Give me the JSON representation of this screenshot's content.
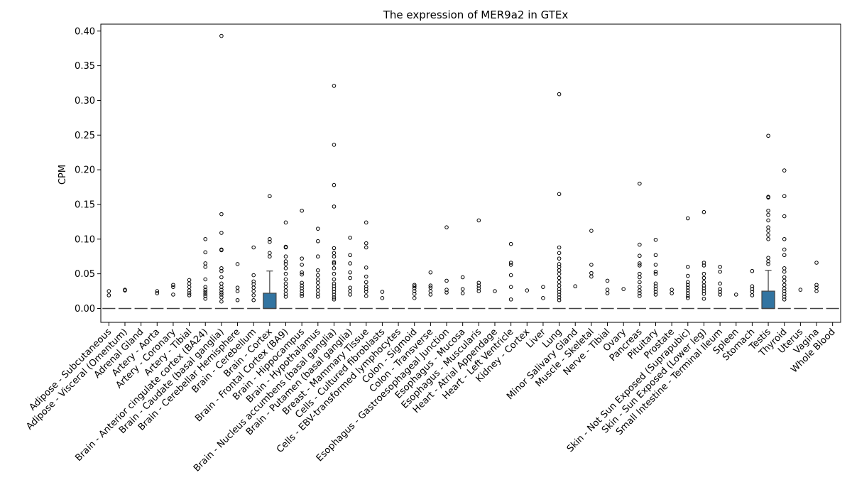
{
  "chart_data": {
    "type": "box",
    "title": "The expression of MER9a2 in GTEx",
    "xlabel": "",
    "ylabel": "CPM",
    "ylim": [
      -0.02,
      0.41
    ],
    "yticks": [
      "0.00",
      "0.05",
      "0.10",
      "0.15",
      "0.20",
      "0.25",
      "0.30",
      "0.35",
      "0.40"
    ],
    "ytick_values": [
      0,
      0.05,
      0.1,
      0.15,
      0.2,
      0.25,
      0.3,
      0.35,
      0.4
    ],
    "grid": false,
    "box_color": "#3274a1",
    "categories": [
      "Adipose - Subcutaneous",
      "Adipose - Visceral (Omentum)",
      "Adrenal Gland",
      "Artery - Aorta",
      "Artery - Coronary",
      "Artery - Tibial",
      "Brain - Anterior cingulate cortex (BA24)",
      "Brain - Caudate (basal ganglia)",
      "Brain - Cerebellar Hemisphere",
      "Brain - Cerebellum",
      "Brain - Cortex",
      "Brain - Frontal Cortex (BA9)",
      "Brain - Hippocampus",
      "Brain - Hypothalamus",
      "Brain - Nucleus accumbens (basal ganglia)",
      "Brain - Putamen (basal ganglia)",
      "Breast - Mammary Tissue",
      "Cells - Cultured fibroblasts",
      "Cells - EBV-transformed lymphocytes",
      "Colon - Sigmoid",
      "Colon - Transverse",
      "Esophagus - Gastroesophageal Junction",
      "Esophagus - Mucosa",
      "Esophagus - Muscularis",
      "Heart - Atrial Appendage",
      "Heart - Left Ventricle",
      "Kidney - Cortex",
      "Liver",
      "Lung",
      "Minor Salivary Gland",
      "Muscle - Skeletal",
      "Nerve - Tibial",
      "Ovary",
      "Pancreas",
      "Pituitary",
      "Prostate",
      "Skin - Not Sun Exposed (Suprapubic)",
      "Skin - Sun Exposed (Lower leg)",
      "Small Intestine - Terminal Ileum",
      "Spleen",
      "Stomach",
      "Testis",
      "Thyroid",
      "Uterus",
      "Vagina",
      "Whole Blood"
    ],
    "boxes": [
      {
        "q1": 0,
        "median": 0,
        "q3": 0,
        "whisker_low": 0,
        "whisker_high": 0,
        "outliers": [
          0.019,
          0.025
        ]
      },
      {
        "q1": 0,
        "median": 0,
        "q3": 0,
        "whisker_low": 0,
        "whisker_high": 0,
        "outliers": [
          0.026,
          0.027
        ]
      },
      {
        "q1": 0,
        "median": 0,
        "q3": 0,
        "whisker_low": 0,
        "whisker_high": 0,
        "outliers": []
      },
      {
        "q1": 0,
        "median": 0,
        "q3": 0,
        "whisker_low": 0,
        "whisker_high": 0,
        "outliers": [
          0.022,
          0.025
        ]
      },
      {
        "q1": 0,
        "median": 0,
        "q3": 0,
        "whisker_low": 0,
        "whisker_high": 0,
        "outliers": [
          0.02,
          0.031,
          0.034
        ]
      },
      {
        "q1": 0,
        "median": 0,
        "q3": 0,
        "whisker_low": 0,
        "whisker_high": 0,
        "outliers": [
          0.019,
          0.022,
          0.026,
          0.031,
          0.036,
          0.041
        ]
      },
      {
        "q1": 0,
        "median": 0,
        "q3": 0,
        "whisker_low": 0,
        "whisker_high": 0,
        "outliers": [
          0.014,
          0.018,
          0.021,
          0.024,
          0.027,
          0.031,
          0.042,
          0.06,
          0.065,
          0.081,
          0.1
        ]
      },
      {
        "q1": 0,
        "median": 0,
        "q3": 0,
        "whisker_low": 0,
        "whisker_high": 0,
        "outliers": [
          0.01,
          0.016,
          0.02,
          0.023,
          0.027,
          0.031,
          0.036,
          0.045,
          0.054,
          0.058,
          0.084,
          0.085,
          0.109,
          0.136,
          0.393
        ]
      },
      {
        "q1": 0,
        "median": 0,
        "q3": 0,
        "whisker_low": 0,
        "whisker_high": 0,
        "outliers": [
          0.012,
          0.025,
          0.03,
          0.064
        ]
      },
      {
        "q1": 0,
        "median": 0,
        "q3": 0,
        "whisker_low": 0,
        "whisker_high": 0,
        "outliers": [
          0.012,
          0.019,
          0.025,
          0.03,
          0.035,
          0.039,
          0.048,
          0.088
        ]
      },
      {
        "q1": 0,
        "median": 0,
        "q3": 0.022,
        "whisker_low": 0,
        "whisker_high": 0.054,
        "outliers": [
          0.075,
          0.08,
          0.096,
          0.1,
          0.162
        ]
      },
      {
        "q1": 0,
        "median": 0,
        "q3": 0,
        "whisker_low": 0,
        "whisker_high": 0,
        "outliers": [
          0.017,
          0.021,
          0.026,
          0.031,
          0.036,
          0.042,
          0.05,
          0.058,
          0.064,
          0.068,
          0.075,
          0.088,
          0.089,
          0.124
        ]
      },
      {
        "q1": 0,
        "median": 0,
        "q3": 0,
        "whisker_low": 0,
        "whisker_high": 0,
        "outliers": [
          0.018,
          0.021,
          0.025,
          0.029,
          0.033,
          0.037,
          0.049,
          0.052,
          0.063,
          0.072,
          0.141
        ]
      },
      {
        "q1": 0,
        "median": 0,
        "q3": 0,
        "whisker_low": 0,
        "whisker_high": 0,
        "outliers": [
          0.017,
          0.021,
          0.026,
          0.031,
          0.037,
          0.042,
          0.048,
          0.055,
          0.075,
          0.097,
          0.115
        ]
      },
      {
        "q1": 0,
        "median": 0,
        "q3": 0,
        "whisker_low": 0,
        "whisker_high": 0,
        "outliers": [
          0.013,
          0.016,
          0.02,
          0.024,
          0.028,
          0.032,
          0.036,
          0.042,
          0.05,
          0.058,
          0.065,
          0.067,
          0.075,
          0.08,
          0.087,
          0.147,
          0.178,
          0.236,
          0.321
        ]
      },
      {
        "q1": 0,
        "median": 0,
        "q3": 0,
        "whisker_low": 0,
        "whisker_high": 0,
        "outliers": [
          0.02,
          0.025,
          0.03,
          0.044,
          0.052,
          0.065,
          0.077,
          0.102
        ]
      },
      {
        "q1": 0,
        "median": 0,
        "q3": 0,
        "whisker_low": 0,
        "whisker_high": 0,
        "outliers": [
          0.018,
          0.024,
          0.028,
          0.032,
          0.038,
          0.046,
          0.059,
          0.088,
          0.094,
          0.124
        ]
      },
      {
        "q1": 0,
        "median": 0,
        "q3": 0,
        "whisker_low": 0,
        "whisker_high": 0,
        "outliers": [
          0.015,
          0.024
        ]
      },
      {
        "q1": 0,
        "median": 0,
        "q3": 0,
        "whisker_low": 0,
        "whisker_high": 0,
        "outliers": []
      },
      {
        "q1": 0,
        "median": 0,
        "q3": 0,
        "whisker_low": 0,
        "whisker_high": 0,
        "outliers": [
          0.015,
          0.021,
          0.025,
          0.029,
          0.032,
          0.034
        ]
      },
      {
        "q1": 0,
        "median": 0,
        "q3": 0,
        "whisker_low": 0,
        "whisker_high": 0,
        "outliers": [
          0.02,
          0.025,
          0.03,
          0.033,
          0.052
        ]
      },
      {
        "q1": 0,
        "median": 0,
        "q3": 0,
        "whisker_low": 0,
        "whisker_high": 0,
        "outliers": [
          0.023,
          0.027,
          0.04,
          0.117
        ]
      },
      {
        "q1": 0,
        "median": 0,
        "q3": 0,
        "whisker_low": 0,
        "whisker_high": 0,
        "outliers": [
          0.022,
          0.028,
          0.045
        ]
      },
      {
        "q1": 0,
        "median": 0,
        "q3": 0,
        "whisker_low": 0,
        "whisker_high": 0,
        "outliers": [
          0.025,
          0.029,
          0.033,
          0.037,
          0.127
        ]
      },
      {
        "q1": 0,
        "median": 0,
        "q3": 0,
        "whisker_low": 0,
        "whisker_high": 0,
        "outliers": [
          0.025
        ]
      },
      {
        "q1": 0,
        "median": 0,
        "q3": 0,
        "whisker_low": 0,
        "whisker_high": 0,
        "outliers": [
          0.013,
          0.031,
          0.048,
          0.063,
          0.066,
          0.093
        ]
      },
      {
        "q1": 0,
        "median": 0,
        "q3": 0,
        "whisker_low": 0,
        "whisker_high": 0,
        "outliers": [
          0.026
        ]
      },
      {
        "q1": 0,
        "median": 0,
        "q3": 0,
        "whisker_low": 0,
        "whisker_high": 0,
        "outliers": [
          0.015,
          0.031
        ]
      },
      {
        "q1": 0,
        "median": 0,
        "q3": 0,
        "whisker_low": 0,
        "whisker_high": 0,
        "outliers": [
          0.012,
          0.016,
          0.02,
          0.024,
          0.028,
          0.033,
          0.038,
          0.044,
          0.05,
          0.055,
          0.06,
          0.064,
          0.072,
          0.08,
          0.088,
          0.165,
          0.309
        ]
      },
      {
        "q1": 0,
        "median": 0,
        "q3": 0,
        "whisker_low": 0,
        "whisker_high": 0,
        "outliers": [
          0.032
        ]
      },
      {
        "q1": 0,
        "median": 0,
        "q3": 0,
        "whisker_low": 0,
        "whisker_high": 0,
        "outliers": [
          0.046,
          0.051,
          0.063,
          0.112
        ]
      },
      {
        "q1": 0,
        "median": 0,
        "q3": 0,
        "whisker_low": 0,
        "whisker_high": 0,
        "outliers": [
          0.022,
          0.027,
          0.04
        ]
      },
      {
        "q1": 0,
        "median": 0,
        "q3": 0,
        "whisker_low": 0,
        "whisker_high": 0,
        "outliers": [
          0.028
        ]
      },
      {
        "q1": 0,
        "median": 0,
        "q3": 0,
        "whisker_low": 0,
        "whisker_high": 0,
        "outliers": [
          0.018,
          0.022,
          0.026,
          0.031,
          0.038,
          0.045,
          0.05,
          0.062,
          0.065,
          0.076,
          0.092,
          0.18
        ]
      },
      {
        "q1": 0,
        "median": 0,
        "q3": 0,
        "whisker_low": 0,
        "whisker_high": 0,
        "outliers": [
          0.02,
          0.024,
          0.028,
          0.032,
          0.036,
          0.05,
          0.053,
          0.063,
          0.077,
          0.099
        ]
      },
      {
        "q1": 0,
        "median": 0,
        "q3": 0,
        "whisker_low": 0,
        "whisker_high": 0,
        "outliers": [
          0.022,
          0.027
        ]
      },
      {
        "q1": 0,
        "median": 0,
        "q3": 0,
        "whisker_low": 0,
        "whisker_high": 0,
        "outliers": [
          0.015,
          0.018,
          0.022,
          0.026,
          0.03,
          0.034,
          0.038,
          0.047,
          0.06,
          0.13
        ]
      },
      {
        "q1": 0,
        "median": 0,
        "q3": 0,
        "whisker_low": 0,
        "whisker_high": 0,
        "outliers": [
          0.014,
          0.021,
          0.025,
          0.029,
          0.033,
          0.038,
          0.044,
          0.05,
          0.062,
          0.066,
          0.139
        ]
      },
      {
        "q1": 0,
        "median": 0,
        "q3": 0,
        "whisker_low": 0,
        "whisker_high": 0,
        "outliers": [
          0.02,
          0.024,
          0.028,
          0.036,
          0.053,
          0.06
        ]
      },
      {
        "q1": 0,
        "median": 0,
        "q3": 0,
        "whisker_low": 0,
        "whisker_high": 0,
        "outliers": [
          0.02
        ]
      },
      {
        "q1": 0,
        "median": 0,
        "q3": 0,
        "whisker_low": 0,
        "whisker_high": 0,
        "outliers": [
          0.019,
          0.024,
          0.028,
          0.032,
          0.054
        ]
      },
      {
        "q1": 0,
        "median": 0,
        "q3": 0.025,
        "whisker_low": 0,
        "whisker_high": 0.055,
        "outliers": [
          0.064,
          0.068,
          0.073,
          0.1,
          0.106,
          0.112,
          0.117,
          0.127,
          0.135,
          0.141,
          0.16,
          0.161,
          0.249
        ]
      },
      {
        "q1": 0,
        "median": 0,
        "q3": 0,
        "whisker_low": 0,
        "whisker_high": 0,
        "outliers": [
          0.013,
          0.017,
          0.021,
          0.025,
          0.029,
          0.034,
          0.04,
          0.045,
          0.053,
          0.058,
          0.077,
          0.085,
          0.1,
          0.133,
          0.162,
          0.199
        ]
      },
      {
        "q1": 0,
        "median": 0,
        "q3": 0,
        "whisker_low": 0,
        "whisker_high": 0,
        "outliers": [
          0.027
        ]
      },
      {
        "q1": 0,
        "median": 0,
        "q3": 0,
        "whisker_low": 0,
        "whisker_high": 0,
        "outliers": [
          0.025,
          0.03,
          0.034,
          0.066
        ]
      },
      {
        "q1": 0,
        "median": 0,
        "q3": 0,
        "whisker_low": 0,
        "whisker_high": 0,
        "outliers": []
      }
    ]
  }
}
